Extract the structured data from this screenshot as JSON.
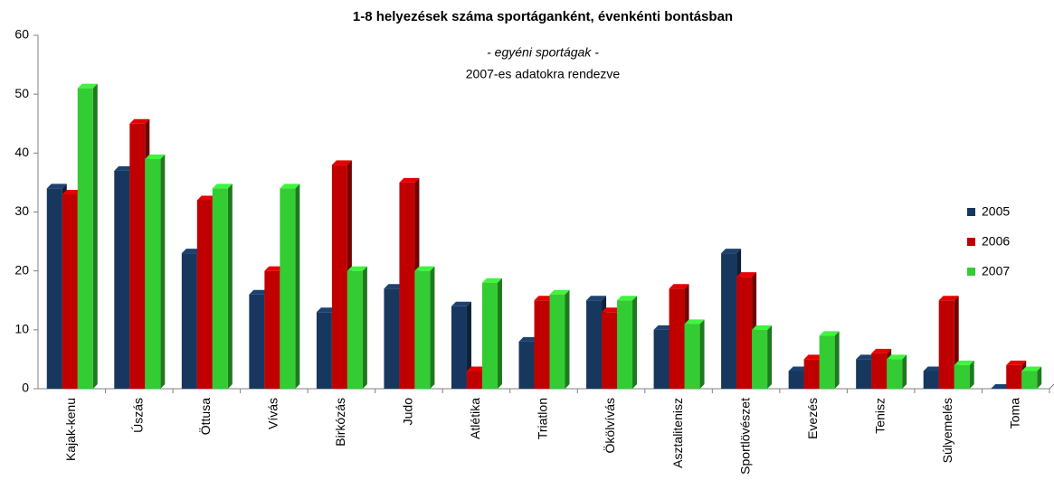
{
  "chart_data": {
    "type": "bar",
    "title": "1-8 helyezések száma sportáganként, évenkénti bontásban",
    "subtitle": "- egyéni sportágak -",
    "annotation": "2007-es adatokra rendezve",
    "categories": [
      "Kajak-kenu",
      "Úszás",
      "Öttusa",
      "Vívás",
      "Birkózás",
      "Judo",
      "Atlétika",
      "Triatlon",
      "Ökölvívás",
      "Asztalitenisz",
      "Sportlövészet",
      "Evezés",
      "Tenisz",
      "Súlyemelés",
      "Toma"
    ],
    "series": [
      {
        "name": "2005",
        "color": "#17375e",
        "values": [
          34,
          37,
          23,
          16,
          13,
          17,
          14,
          8,
          15,
          10,
          23,
          3,
          5,
          3,
          0
        ]
      },
      {
        "name": "2006",
        "color": "#c00000",
        "values": [
          33,
          45,
          32,
          20,
          38,
          35,
          3,
          15,
          13,
          17,
          19,
          5,
          6,
          15,
          4
        ]
      },
      {
        "name": "2007",
        "color": "#33cc33",
        "values": [
          51,
          39,
          34,
          34,
          20,
          20,
          18,
          16,
          15,
          11,
          10,
          9,
          5,
          4,
          3
        ]
      }
    ],
    "ylim": [
      0,
      60
    ],
    "yticks": [
      0,
      10,
      20,
      30,
      40,
      50,
      60
    ],
    "grid": false,
    "legend": "right"
  }
}
